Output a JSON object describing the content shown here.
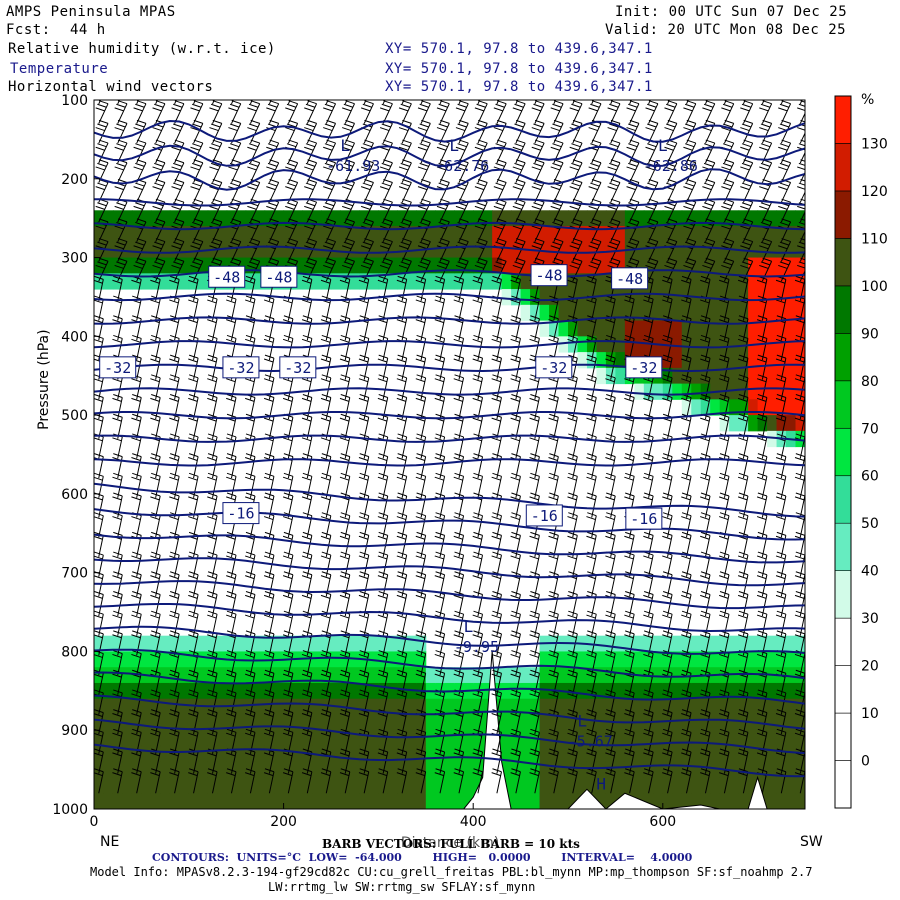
{
  "header": {
    "title": "AMPS Peninsula MPAS",
    "fcst_label": "Fcst:",
    "fcst_value": "44 h",
    "init": "Init: 00 UTC Sun 07 Dec 25",
    "valid": "Valid: 20 UTC Mon 08 Dec 25",
    "fields": [
      {
        "name": "Relative humidity (w.r.t. ice)",
        "xy": "XY= 570.1, 97.8 to 439.6,347.1"
      },
      {
        "name": "Temperature",
        "xy": "XY= 570.1, 97.8 to 439.6,347.1"
      },
      {
        "name": "Horizontal wind vectors",
        "xy": "XY= 570.1, 97.8 to 439.6,347.1"
      }
    ]
  },
  "colors": {
    "contour_line": "#0d1a7a",
    "rh_bins": [
      "#ffffff",
      "#ffffff",
      "#ffffff",
      "#ffffff",
      "#d2fbe8",
      "#66ecc0",
      "#33dd99",
      "#00e640",
      "#00c820",
      "#00a000",
      "#007800",
      "#3e5412",
      "#8b1a00",
      "#d21c00",
      "#ff1e00"
    ]
  },
  "chart_data": {
    "type": "heatmap",
    "title": "Relative humidity (w.r.t. ice), Temperature, Horizontal wind vectors",
    "xlabel": "Distance (km)",
    "ylabel": "Pressure (hPa)",
    "xlim": [
      0,
      750
    ],
    "ylim": [
      1000,
      100
    ],
    "x_ticks": [
      "0",
      "200",
      "400",
      "600"
    ],
    "y_ticks": [
      "100",
      "200",
      "300",
      "400",
      "500",
      "600",
      "700",
      "800",
      "900",
      "1000"
    ],
    "x_end_labels": {
      "left": "NE",
      "right": "SW"
    },
    "colorbar": {
      "unit": "%",
      "levels": [
        -10,
        0,
        10,
        20,
        30,
        40,
        50,
        60,
        70,
        80,
        90,
        100,
        110,
        120,
        130,
        140
      ],
      "tick_labels": [
        "0",
        "10",
        "20",
        "30",
        "40",
        "50",
        "60",
        "70",
        "80",
        "90",
        "100",
        "110",
        "120",
        "130"
      ]
    },
    "temperature_contours": {
      "unit": "°C",
      "low": -64.0,
      "high": 0.0,
      "interval": 4.0,
      "labels": [
        {
          "text": "-48",
          "x": 140,
          "p": 325
        },
        {
          "text": "-48",
          "x": 195,
          "p": 325
        },
        {
          "text": "-48",
          "x": 480,
          "p": 323
        },
        {
          "text": "-48",
          "x": 565,
          "p": 327
        },
        {
          "text": "-32",
          "x": 25,
          "p": 440
        },
        {
          "text": "-32",
          "x": 155,
          "p": 440
        },
        {
          "text": "-32",
          "x": 215,
          "p": 440
        },
        {
          "text": "-32",
          "x": 485,
          "p": 440
        },
        {
          "text": "-32",
          "x": 580,
          "p": 440
        },
        {
          "text": "-16",
          "x": 155,
          "p": 625
        },
        {
          "text": "-16",
          "x": 475,
          "p": 628
        },
        {
          "text": "-16",
          "x": 580,
          "p": 632
        }
      ],
      "extrema": [
        {
          "type": "L",
          "x": 265,
          "p": 165,
          "value": "-61.93"
        },
        {
          "type": "L",
          "x": 380,
          "p": 165,
          "value": "-62.76"
        },
        {
          "type": "L",
          "x": 600,
          "p": 165,
          "value": "-62.86"
        },
        {
          "type": "L",
          "x": 395,
          "p": 775,
          "value": "-9.95"
        },
        {
          "type": "L",
          "x": 515,
          "p": 895,
          "value": "-5.67"
        },
        {
          "type": "H",
          "x": 535,
          "p": 975,
          "value": ""
        }
      ]
    },
    "wind_barbs": {
      "legend": "BARB VECTORS: FULL BARB = 10 kts"
    }
  },
  "footer": {
    "barb_legend": "BARB VECTORS: FULL BARB = 10 kts",
    "contours": "CONTOURS:  UNITS=°C  LOW=  -64.000        HIGH=   0.0000        INTERVAL=    4.0000",
    "model_info_1": "Model Info: MPASv8.2.3-194-gf29cd82c CU:cu_grell_freitas PBL:bl_mynn MP:mp_thompson SF:sf_noahmp 2.7",
    "model_info_2": "LW:rrtmg_lw SW:rrtmg_sw SFLAY:sf_mynn"
  }
}
